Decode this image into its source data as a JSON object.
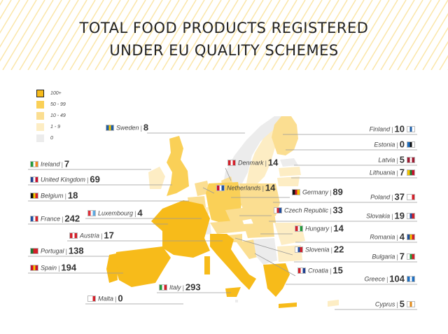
{
  "title": {
    "line1": "TOTAL FOOD PRODUCTS REGISTERED",
    "line2": "UNDER EU QUALITY SCHEMES"
  },
  "legend": [
    {
      "label": "100+",
      "color": "#f7bb1a"
    },
    {
      "label": "50 - 99",
      "color": "#fad057"
    },
    {
      "label": "10 - 49",
      "color": "#fbde91"
    },
    {
      "label": "1 - 9",
      "color": "#fdedc4"
    },
    {
      "label": "0",
      "color": "#ececec"
    }
  ],
  "colors": {
    "tier_100_plus": "#f7bb1a",
    "tier_50_99": "#fad057",
    "tier_10_49": "#fbde91",
    "tier_1_9": "#fdedc4",
    "tier_0": "#ececec",
    "leader_line": "#9a9a9a",
    "hatch": "#fbe6a8"
  },
  "countries": [
    {
      "name": "Sweden",
      "value": "8",
      "flag": [
        "#1f5fa8",
        "#f5c400",
        "#1f5fa8"
      ]
    },
    {
      "name": "Ireland",
      "value": "7",
      "flag": [
        "#239a3c",
        "#ffffff",
        "#f08a24"
      ]
    },
    {
      "name": "United Kingdom",
      "value": "69",
      "flag": [
        "#1f3f8f",
        "#ffffff",
        "#c8102e"
      ]
    },
    {
      "name": "Belgium",
      "value": "18",
      "flag": [
        "#111111",
        "#f6d000",
        "#d3202a"
      ]
    },
    {
      "name": "France",
      "value": "242",
      "flag": [
        "#1f4fa0",
        "#ffffff",
        "#d3202a"
      ]
    },
    {
      "name": "Luxembourg",
      "value": "4",
      "flag": [
        "#e0303a",
        "#ffffff",
        "#5fa8e0"
      ]
    },
    {
      "name": "Austria",
      "value": "17",
      "flag": [
        "#d3202a",
        "#ffffff",
        "#d3202a"
      ]
    },
    {
      "name": "Portugal",
      "value": "138",
      "flag": [
        "#1d7a32",
        "#d3202a",
        "#d3202a"
      ]
    },
    {
      "name": "Spain",
      "value": "194",
      "flag": [
        "#c8102e",
        "#f6c400",
        "#c8102e"
      ]
    },
    {
      "name": "Malta",
      "value": "0",
      "flag": [
        "#ffffff",
        "#ffffff",
        "#d3202a"
      ]
    },
    {
      "name": "Italy",
      "value": "293",
      "flag": [
        "#239a3c",
        "#ffffff",
        "#d3202a"
      ]
    },
    {
      "name": "Denmark",
      "value": "14",
      "flag": [
        "#d3202a",
        "#ffffff",
        "#d3202a"
      ]
    },
    {
      "name": "Netherlands",
      "value": "14",
      "flag": [
        "#c8102e",
        "#ffffff",
        "#1f4fa0"
      ]
    },
    {
      "name": "Germany",
      "value": "89",
      "flag": [
        "#111111",
        "#d3202a",
        "#f6c400"
      ]
    },
    {
      "name": "Czech Republic",
      "value": "33",
      "flag": [
        "#ffffff",
        "#d3202a",
        "#1f4fa0"
      ]
    },
    {
      "name": "Hungary",
      "value": "14",
      "flag": [
        "#d3202a",
        "#ffffff",
        "#239a3c"
      ]
    },
    {
      "name": "Slovenia",
      "value": "22",
      "flag": [
        "#ffffff",
        "#1f4fa0",
        "#d3202a"
      ]
    },
    {
      "name": "Croatia",
      "value": "15",
      "flag": [
        "#d3202a",
        "#ffffff",
        "#1f3f8f"
      ]
    },
    {
      "name": "Finland",
      "value": "10",
      "flag": [
        "#ffffff",
        "#1f5fa8",
        "#ffffff"
      ]
    },
    {
      "name": "Estonia",
      "value": "0",
      "flag": [
        "#1f6fc0",
        "#111111",
        "#ffffff"
      ]
    },
    {
      "name": "Latvia",
      "value": "5",
      "flag": [
        "#9e1b32",
        "#ffffff",
        "#9e1b32"
      ]
    },
    {
      "name": "Lithuania",
      "value": "7",
      "flag": [
        "#f6c400",
        "#1d7a32",
        "#c8102e"
      ]
    },
    {
      "name": "Poland",
      "value": "37",
      "flag": [
        "#ffffff",
        "#ffffff",
        "#d3202a"
      ]
    },
    {
      "name": "Slovakia",
      "value": "19",
      "flag": [
        "#ffffff",
        "#1f4fa0",
        "#d3202a"
      ]
    },
    {
      "name": "Romania",
      "value": "4",
      "flag": [
        "#1f4fa0",
        "#f6c400",
        "#d3202a"
      ]
    },
    {
      "name": "Bulgaria",
      "value": "7",
      "flag": [
        "#ffffff",
        "#239a3c",
        "#d3202a"
      ]
    },
    {
      "name": "Greece",
      "value": "104",
      "flag": [
        "#1f6fc0",
        "#ffffff",
        "#1f6fc0"
      ]
    },
    {
      "name": "Cyprus",
      "value": "5",
      "flag": [
        "#ffffff",
        "#e08a1a",
        "#ffffff"
      ]
    }
  ]
}
